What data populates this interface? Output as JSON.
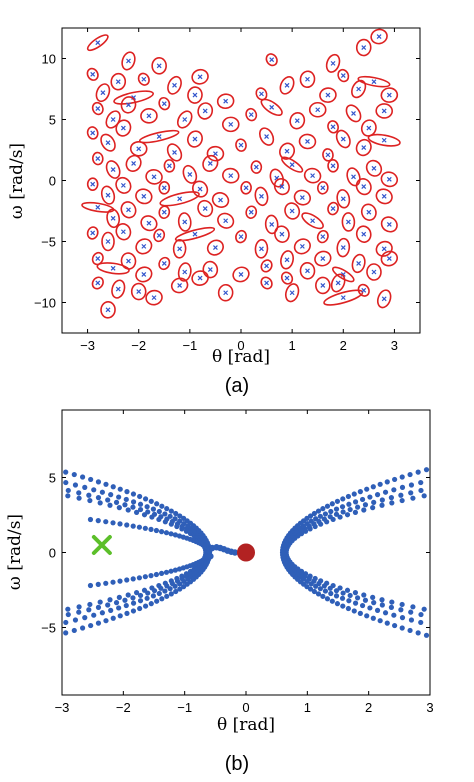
{
  "chart_data": [
    {
      "type": "scatter",
      "panel": "a",
      "caption": "(a)",
      "xlabel": "θ  [rad]",
      "ylabel": "ω  [rad/s]",
      "xlim": [
        -3.5,
        3.5
      ],
      "ylim": [
        -12.5,
        12.5
      ],
      "xticks": [
        -3,
        -2,
        -1,
        0,
        1,
        2,
        3
      ],
      "yticks": [
        -10,
        -5,
        0,
        5,
        10
      ],
      "grid": false,
      "series": [
        {
          "marker": "x (center) with ellipse",
          "marker_color": "#3355cc",
          "ellipse_color": "#dd2222",
          "points": [
            [
              -2.8,
              11.3
            ],
            [
              -2.2,
              9.8
            ],
            [
              -1.6,
              9.4
            ],
            [
              -0.8,
              8.5
            ],
            [
              0.6,
              9.9
            ],
            [
              1.8,
              9.6
            ],
            [
              2.4,
              10.9
            ],
            [
              2.7,
              11.8
            ],
            [
              -2.9,
              8.7
            ],
            [
              -2.7,
              7.2
            ],
            [
              -2.4,
              8.1
            ],
            [
              -2.1,
              6.8
            ],
            [
              -1.9,
              8.3
            ],
            [
              -1.3,
              7.8
            ],
            [
              -0.9,
              7.0
            ],
            [
              -0.3,
              6.5
            ],
            [
              0.4,
              7.1
            ],
            [
              0.9,
              7.8
            ],
            [
              1.3,
              8.3
            ],
            [
              1.7,
              7.0
            ],
            [
              2.0,
              8.6
            ],
            [
              2.3,
              7.5
            ],
            [
              2.6,
              8.1
            ],
            [
              2.9,
              7.0
            ],
            [
              -2.8,
              5.9
            ],
            [
              -2.5,
              5.0
            ],
            [
              -2.2,
              6.2
            ],
            [
              -1.8,
              5.3
            ],
            [
              -1.5,
              6.3
            ],
            [
              -1.1,
              5.0
            ],
            [
              -0.7,
              5.7
            ],
            [
              -0.2,
              4.6
            ],
            [
              0.2,
              5.4
            ],
            [
              0.6,
              6.0
            ],
            [
              1.1,
              4.9
            ],
            [
              1.5,
              5.8
            ],
            [
              1.8,
              4.4
            ],
            [
              2.2,
              5.5
            ],
            [
              2.5,
              4.3
            ],
            [
              2.8,
              5.7
            ],
            [
              -2.9,
              3.9
            ],
            [
              -2.6,
              3.1
            ],
            [
              -2.3,
              4.3
            ],
            [
              -2.0,
              2.6
            ],
            [
              -1.6,
              3.6
            ],
            [
              -1.3,
              2.3
            ],
            [
              -0.9,
              3.4
            ],
            [
              -0.5,
              2.2
            ],
            [
              0.0,
              2.9
            ],
            [
              0.5,
              3.6
            ],
            [
              0.9,
              2.4
            ],
            [
              1.3,
              3.2
            ],
            [
              1.7,
              2.1
            ],
            [
              2.0,
              3.4
            ],
            [
              2.4,
              2.7
            ],
            [
              2.8,
              3.3
            ],
            [
              -2.8,
              1.8
            ],
            [
              -2.5,
              0.9
            ],
            [
              -2.1,
              1.4
            ],
            [
              -1.7,
              0.3
            ],
            [
              -1.4,
              1.2
            ],
            [
              -1.0,
              0.5
            ],
            [
              -0.6,
              1.4
            ],
            [
              -0.2,
              0.4
            ],
            [
              0.3,
              1.1
            ],
            [
              0.7,
              0.2
            ],
            [
              1.0,
              1.3
            ],
            [
              1.4,
              0.4
            ],
            [
              1.8,
              1.2
            ],
            [
              2.2,
              0.3
            ],
            [
              2.6,
              1.0
            ],
            [
              2.9,
              0.1
            ],
            [
              -2.9,
              -0.3
            ],
            [
              -2.6,
              -1.2
            ],
            [
              -2.3,
              -0.4
            ],
            [
              -1.9,
              -1.3
            ],
            [
              -1.5,
              -0.6
            ],
            [
              -1.2,
              -1.5
            ],
            [
              -0.8,
              -0.7
            ],
            [
              -0.4,
              -1.6
            ],
            [
              0.1,
              -0.6
            ],
            [
              0.4,
              -1.3
            ],
            [
              0.8,
              -0.5
            ],
            [
              1.2,
              -1.4
            ],
            [
              1.6,
              -0.6
            ],
            [
              2.0,
              -1.5
            ],
            [
              2.4,
              -0.5
            ],
            [
              2.8,
              -1.3
            ],
            [
              -2.8,
              -2.2
            ],
            [
              -2.5,
              -3.1
            ],
            [
              -2.2,
              -2.4
            ],
            [
              -1.8,
              -3.5
            ],
            [
              -1.5,
              -2.6
            ],
            [
              -1.1,
              -3.4
            ],
            [
              -0.7,
              -2.3
            ],
            [
              -0.3,
              -3.3
            ],
            [
              0.2,
              -2.6
            ],
            [
              0.6,
              -3.6
            ],
            [
              1.0,
              -2.5
            ],
            [
              1.4,
              -3.3
            ],
            [
              1.8,
              -2.3
            ],
            [
              2.1,
              -3.4
            ],
            [
              2.5,
              -2.6
            ],
            [
              2.9,
              -3.6
            ],
            [
              -2.9,
              -4.3
            ],
            [
              -2.6,
              -5.0
            ],
            [
              -2.3,
              -4.2
            ],
            [
              -1.9,
              -5.4
            ],
            [
              -1.6,
              -4.5
            ],
            [
              -1.2,
              -5.6
            ],
            [
              -0.9,
              -4.4
            ],
            [
              -0.5,
              -5.5
            ],
            [
              0.0,
              -4.6
            ],
            [
              0.4,
              -5.6
            ],
            [
              0.8,
              -4.4
            ],
            [
              1.2,
              -5.4
            ],
            [
              1.6,
              -4.6
            ],
            [
              2.0,
              -5.5
            ],
            [
              2.4,
              -4.4
            ],
            [
              2.8,
              -5.6
            ],
            [
              -2.8,
              -6.4
            ],
            [
              -2.5,
              -7.2
            ],
            [
              -2.2,
              -6.6
            ],
            [
              -1.9,
              -7.7
            ],
            [
              -1.5,
              -6.8
            ],
            [
              -1.1,
              -7.5
            ],
            [
              -0.6,
              -7.3
            ],
            [
              0.0,
              -7.7
            ],
            [
              0.5,
              -7.0
            ],
            [
              0.9,
              -6.5
            ],
            [
              1.3,
              -7.4
            ],
            [
              1.6,
              -6.4
            ],
            [
              2.0,
              -7.7
            ],
            [
              2.3,
              -6.8
            ],
            [
              2.6,
              -7.5
            ],
            [
              2.9,
              -6.4
            ],
            [
              -2.8,
              -8.4
            ],
            [
              -2.4,
              -8.9
            ],
            [
              -2.0,
              -9.1
            ],
            [
              -1.2,
              -8.6
            ],
            [
              0.5,
              -8.4
            ],
            [
              1.0,
              -9.2
            ],
            [
              1.6,
              -8.6
            ],
            [
              2.0,
              -9.6
            ],
            [
              2.4,
              -9.0
            ],
            [
              2.8,
              -9.7
            ],
            [
              -2.6,
              -10.6
            ],
            [
              -1.7,
              -9.6
            ],
            [
              0.9,
              -8.0
            ],
            [
              1.9,
              -8.4
            ],
            [
              -0.3,
              -9.2
            ],
            [
              -0.8,
              -8.0
            ]
          ]
        }
      ]
    },
    {
      "type": "scatter",
      "panel": "b",
      "caption": "(b)",
      "xlabel": "θ  [rad]",
      "ylabel": "ω  [rad/s]",
      "xlim": [
        -3,
        3
      ],
      "ylim": [
        -9.5,
        9.5
      ],
      "xticks": [
        -3,
        -2,
        -1,
        0,
        1,
        2,
        3
      ],
      "yticks": [
        -5,
        0,
        5
      ],
      "grid": false,
      "trajectory_color": "#2f5fb8",
      "trajectory_ks": [
        2.5,
        2.1,
        1.7,
        1.3
      ],
      "left_tail": [
        [
          -0.58,
          -0.25
        ],
        [
          -0.6,
          0.1
        ],
        [
          -0.55,
          0.3
        ],
        [
          -0.48,
          0.35
        ],
        [
          -0.42,
          0.3
        ],
        [
          -0.36,
          0.22
        ],
        [
          -0.3,
          0.12
        ],
        [
          -0.24,
          0.05
        ],
        [
          -0.18,
          0.0
        ]
      ],
      "markers": [
        {
          "name": "start",
          "shape": "x",
          "color": "#5cbf2a",
          "x": -2.35,
          "y": 0.5
        },
        {
          "name": "goal",
          "shape": "circle",
          "color": "#b22222",
          "x": 0.0,
          "y": 0.0
        }
      ]
    }
  ],
  "caption_a": "(a)",
  "caption_b": "(b)"
}
